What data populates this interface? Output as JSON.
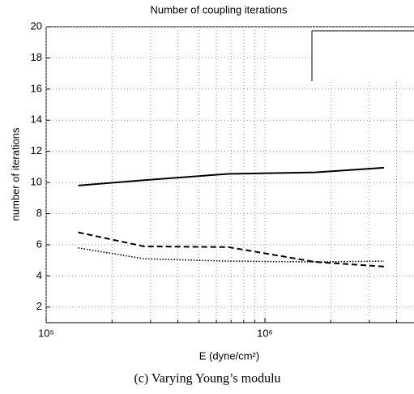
{
  "chart_data": {
    "type": "line",
    "title": "Number of coupling iterations",
    "xlabel": "E (dyne/cm²)",
    "ylabel": "number of iterations",
    "caption": "(c) Varying Young’s modulu",
    "xscale": "log",
    "xlim": [
      100000,
      4800000
    ],
    "xticks": [
      {
        "value": 100000,
        "label": "10⁵"
      },
      {
        "value": 1000000,
        "label": "10⁶"
      }
    ],
    "xminorticks": [
      200000,
      300000,
      400000,
      500000,
      600000,
      700000,
      800000,
      900000,
      2000000,
      3000000,
      4000000
    ],
    "ylim": [
      1,
      20
    ],
    "yticks": [
      2,
      4,
      6,
      8,
      10,
      12,
      14,
      16,
      18,
      20
    ],
    "grid": true,
    "x": [
      140000,
      280000,
      680000,
      1700000,
      3500000
    ],
    "series": [
      {
        "color": "#000000",
        "style": "solid",
        "values": [
          9.8,
          10.15,
          10.55,
          10.65,
          10.95
        ]
      },
      {
        "color": "#000000",
        "style": "dashed",
        "values": [
          6.8,
          5.9,
          5.85,
          4.9,
          4.6
        ]
      },
      {
        "color": "#000000",
        "style": "dotted",
        "values": [
          5.8,
          5.1,
          4.95,
          4.9,
          4.95
        ]
      }
    ]
  }
}
